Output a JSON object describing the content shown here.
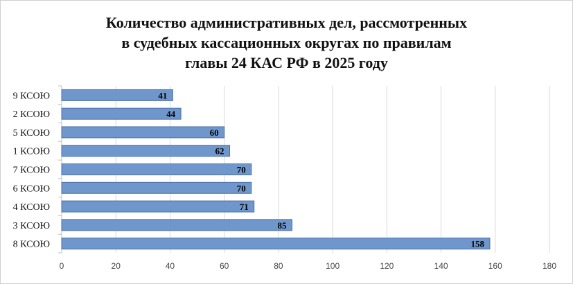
{
  "chart_data": {
    "type": "bar",
    "orientation": "horizontal",
    "title_lines": [
      "Количество административных дел, рассмотренных",
      "в судебных кассационных округах по правилам",
      "главы 24 КАС РФ в 2025 году"
    ],
    "categories": [
      "9 КСОЮ",
      "2 КСОЮ",
      "5 КСОЮ",
      "1 КСОЮ",
      "7 КСОЮ",
      "6 КСОЮ",
      "4 КСОЮ",
      "3 КСОЮ",
      "8 КСОЮ"
    ],
    "values": [
      41,
      44,
      60,
      62,
      70,
      70,
      71,
      85,
      158
    ],
    "xticks": [
      "0",
      "20",
      "40",
      "60",
      "80",
      "100",
      "120",
      "140",
      "160",
      "180"
    ],
    "xlim": [
      0,
      180
    ],
    "grid": true,
    "legend": "none",
    "bar_color": "#6f97cc",
    "bar_border": "#4a70a8",
    "grid_color": "#d9d9d9"
  }
}
